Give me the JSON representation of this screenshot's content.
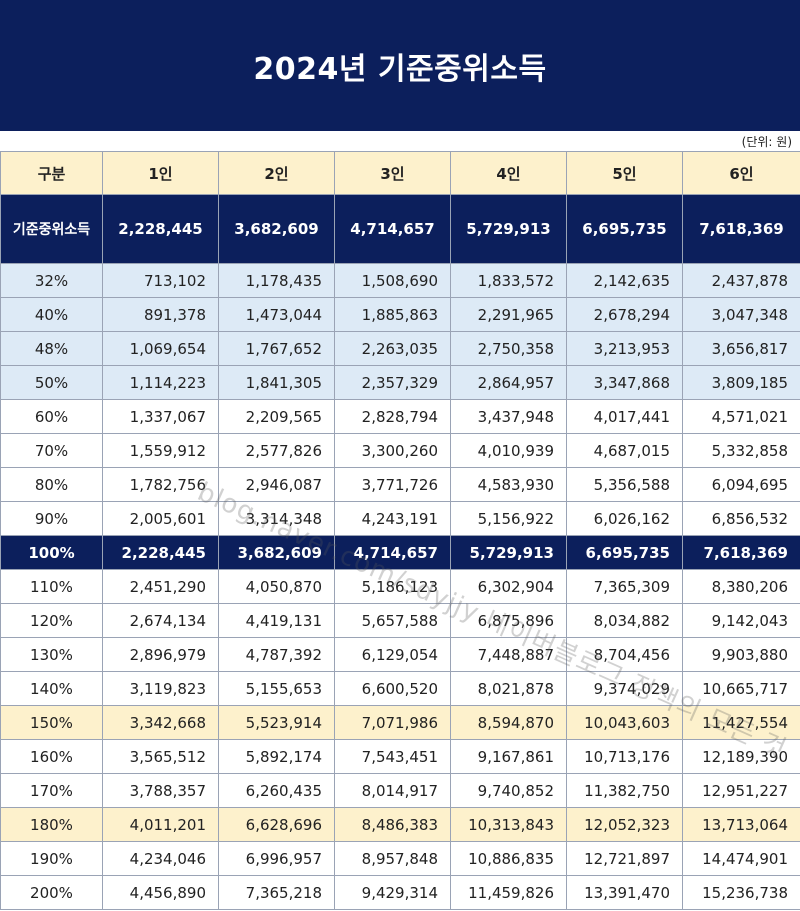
{
  "title": "2024년 기준중위소득",
  "unit_note": "(단위: 원)",
  "watermark": "blog.naver.com/sdyjjy 네이버블로그 정책의 모든 것",
  "colors": {
    "navy": "#0c1f5c",
    "header_yellow": "#fdf1cc",
    "light_blue": "#ddeaf6"
  },
  "table": {
    "headers": [
      "구분",
      "1인",
      "2인",
      "3인",
      "4인",
      "5인",
      "6인"
    ],
    "median": {
      "label": "기준중위소득",
      "values": [
        "2,228,445",
        "3,682,609",
        "4,714,657",
        "5,729,913",
        "6,695,735",
        "7,618,369"
      ]
    },
    "rows": [
      {
        "label": "32%",
        "band": "blue",
        "values": [
          "713,102",
          "1,178,435",
          "1,508,690",
          "1,833,572",
          "2,142,635",
          "2,437,878"
        ]
      },
      {
        "label": "40%",
        "band": "blue",
        "values": [
          "891,378",
          "1,473,044",
          "1,885,863",
          "2,291,965",
          "2,678,294",
          "3,047,348"
        ]
      },
      {
        "label": "48%",
        "band": "blue",
        "values": [
          "1,069,654",
          "1,767,652",
          "2,263,035",
          "2,750,358",
          "3,213,953",
          "3,656,817"
        ]
      },
      {
        "label": "50%",
        "band": "blue",
        "values": [
          "1,114,223",
          "1,841,305",
          "2,357,329",
          "2,864,957",
          "3,347,868",
          "3,809,185"
        ]
      },
      {
        "label": "60%",
        "band": "white",
        "values": [
          "1,337,067",
          "2,209,565",
          "2,828,794",
          "3,437,948",
          "4,017,441",
          "4,571,021"
        ]
      },
      {
        "label": "70%",
        "band": "white",
        "values": [
          "1,559,912",
          "2,577,826",
          "3,300,260",
          "4,010,939",
          "4,687,015",
          "5,332,858"
        ]
      },
      {
        "label": "80%",
        "band": "white",
        "values": [
          "1,782,756",
          "2,946,087",
          "3,771,726",
          "4,583,930",
          "5,356,588",
          "6,094,695"
        ]
      },
      {
        "label": "90%",
        "band": "white",
        "values": [
          "2,005,601",
          "3,314,348",
          "4,243,191",
          "5,156,922",
          "6,026,162",
          "6,856,532"
        ]
      },
      {
        "label": "100%",
        "band": "navy",
        "values": [
          "2,228,445",
          "3,682,609",
          "4,714,657",
          "5,729,913",
          "6,695,735",
          "7,618,369"
        ]
      },
      {
        "label": "110%",
        "band": "white",
        "values": [
          "2,451,290",
          "4,050,870",
          "5,186,123",
          "6,302,904",
          "7,365,309",
          "8,380,206"
        ]
      },
      {
        "label": "120%",
        "band": "white",
        "values": [
          "2,674,134",
          "4,419,131",
          "5,657,588",
          "6,875,896",
          "8,034,882",
          "9,142,043"
        ]
      },
      {
        "label": "130%",
        "band": "white",
        "values": [
          "2,896,979",
          "4,787,392",
          "6,129,054",
          "7,448,887",
          "8,704,456",
          "9,903,880"
        ]
      },
      {
        "label": "140%",
        "band": "white",
        "values": [
          "3,119,823",
          "5,155,653",
          "6,600,520",
          "8,021,878",
          "9,374,029",
          "10,665,717"
        ]
      },
      {
        "label": "150%",
        "band": "yellow",
        "values": [
          "3,342,668",
          "5,523,914",
          "7,071,986",
          "8,594,870",
          "10,043,603",
          "11,427,554"
        ]
      },
      {
        "label": "160%",
        "band": "white",
        "values": [
          "3,565,512",
          "5,892,174",
          "7,543,451",
          "9,167,861",
          "10,713,176",
          "12,189,390"
        ]
      },
      {
        "label": "170%",
        "band": "white",
        "values": [
          "3,788,357",
          "6,260,435",
          "8,014,917",
          "9,740,852",
          "11,382,750",
          "12,951,227"
        ]
      },
      {
        "label": "180%",
        "band": "yellow",
        "values": [
          "4,011,201",
          "6,628,696",
          "8,486,383",
          "10,313,843",
          "12,052,323",
          "13,713,064"
        ]
      },
      {
        "label": "190%",
        "band": "white",
        "values": [
          "4,234,046",
          "6,996,957",
          "8,957,848",
          "10,886,835",
          "12,721,897",
          "14,474,901"
        ]
      },
      {
        "label": "200%",
        "band": "white",
        "values": [
          "4,456,890",
          "7,365,218",
          "9,429,314",
          "11,459,826",
          "13,391,470",
          "15,236,738"
        ]
      }
    ]
  }
}
